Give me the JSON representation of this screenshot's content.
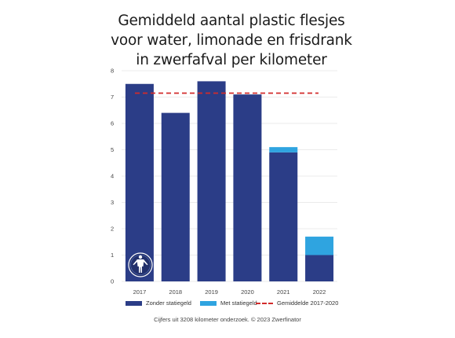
{
  "title_lines": [
    "Gemiddeld aantal plastic flesjes",
    "voor water, limonade en frisdrank",
    "in zwerfafval per kilometer"
  ],
  "chart_data": {
    "type": "bar",
    "stacked": true,
    "categories": [
      "2017",
      "2018",
      "2019",
      "2020",
      "2021",
      "2022"
    ],
    "series": [
      {
        "name": "Zonder statiegeld",
        "color": "#2b3d87",
        "values": [
          7.5,
          6.4,
          7.6,
          7.1,
          4.9,
          1.0
        ]
      },
      {
        "name": "Met statiegeld",
        "color": "#2fa4e0",
        "values": [
          0,
          0,
          0,
          0,
          0.2,
          0.7
        ]
      }
    ],
    "reference_line": {
      "name": "Gemiddelde 2017-2020",
      "value": 7.15,
      "color": "#d22b2b",
      "style": "dashed"
    },
    "ylim": [
      0,
      8
    ],
    "yticks": [
      0,
      1,
      2,
      3,
      4,
      5,
      6,
      7,
      8
    ],
    "grid": true,
    "legend_position": "bottom"
  },
  "source": "Cijfers uit 3208 kilometer onderzoek. © 2023 Zwerfinator",
  "logo_icon": "zwerfinator-logo-icon"
}
